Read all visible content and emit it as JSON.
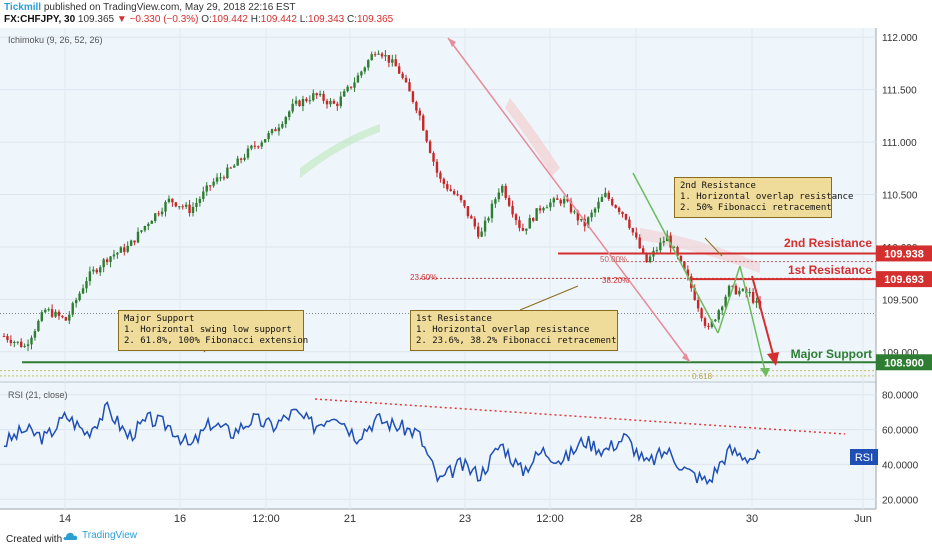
{
  "header": {
    "brand": "Tickmill",
    "published": "published on TradingView.com, May 29, 2018 22:16 EST",
    "symbol": "FX:CHFJPY, 30",
    "price": "109.365",
    "change_arrow": "▼",
    "change": "−0.330 (−0.3%)",
    "ohlc": {
      "o_label": "O:",
      "o": "109.442",
      "h_label": "H:",
      "h": "109.442",
      "l_label": "L:",
      "l": "109.343",
      "c_label": "C:",
      "c": "109.365"
    }
  },
  "footer": {
    "created_with": "Created with",
    "tv_name": "TradingView"
  },
  "colors": {
    "background": "#eef5fb",
    "candle_up": "#2e7d32",
    "candle_down": "#c62828",
    "resistance": "#d32f2f",
    "support": "#2e7d32",
    "rsi_line": "#1f4fb5",
    "callout_fill": "#f0dc9a"
  },
  "indicators": {
    "ichimoku_label": "Ichimoku (9, 26, 52, 26)",
    "rsi_label": "RSI (21, close)",
    "rsi_tag": "RSI"
  },
  "levels": {
    "second_resistance": {
      "label": "2nd Resistance",
      "price": "109.938",
      "value": 109.938
    },
    "first_resistance": {
      "label": "1st Resistance",
      "price": "109.693",
      "value": 109.693
    },
    "major_support": {
      "label": "Major Support",
      "price": "108.900",
      "value": 108.9
    }
  },
  "fib_labels": {
    "f500": "50.00%",
    "f236": "23.60%",
    "f382": "38.20%",
    "f618": "0.618"
  },
  "callouts": {
    "second_resistance": [
      "2nd Resistance",
      "1. Horizontal overlap resistance",
      "2. 50% Fibonacci retracement"
    ],
    "first_resistance": [
      "1st Resistance",
      "1. Horizontal overlap resistance",
      "2. 23.6%, 38.2% Fibonacci retracement"
    ],
    "major_support": [
      "Major Support",
      "1. Horizontal swing low support",
      "2. 61.8%, 100% Fibonacci extension"
    ]
  },
  "chart_data": [
    {
      "type": "candlestick",
      "title": "FX:CHFJPY, 30",
      "price_axis_ticks": [
        "112.000",
        "111.500",
        "111.000",
        "110.500",
        "110.000",
        "109.500",
        "109.000"
      ],
      "ylim": [
        108.75,
        112.05
      ],
      "time_axis_ticks": [
        "14",
        "16",
        "12:00",
        "21",
        "23",
        "12:00",
        "28",
        "30",
        "Jun"
      ],
      "close_path": [
        {
          "x": 0,
          "y": 109.15
        },
        {
          "x": 2,
          "y": 109.05
        },
        {
          "x": 4,
          "y": 109.4
        },
        {
          "x": 6,
          "y": 109.3
        },
        {
          "x": 8,
          "y": 109.7
        },
        {
          "x": 10,
          "y": 109.9
        },
        {
          "x": 12,
          "y": 110.0
        },
        {
          "x": 14,
          "y": 110.25
        },
        {
          "x": 16,
          "y": 110.45
        },
        {
          "x": 18,
          "y": 110.35
        },
        {
          "x": 20,
          "y": 110.6
        },
        {
          "x": 22,
          "y": 110.75
        },
        {
          "x": 24,
          "y": 110.95
        },
        {
          "x": 26,
          "y": 111.1
        },
        {
          "x": 28,
          "y": 111.35
        },
        {
          "x": 30,
          "y": 111.45
        },
        {
          "x": 32,
          "y": 111.35
        },
        {
          "x": 34,
          "y": 111.6
        },
        {
          "x": 36,
          "y": 111.9
        },
        {
          "x": 38,
          "y": 111.7
        },
        {
          "x": 40,
          "y": 111.3
        },
        {
          "x": 42,
          "y": 110.65
        },
        {
          "x": 44,
          "y": 110.45
        },
        {
          "x": 46,
          "y": 110.1
        },
        {
          "x": 48,
          "y": 110.6
        },
        {
          "x": 50,
          "y": 110.15
        },
        {
          "x": 52,
          "y": 110.4
        },
        {
          "x": 54,
          "y": 110.45
        },
        {
          "x": 56,
          "y": 110.2
        },
        {
          "x": 58,
          "y": 110.5
        },
        {
          "x": 60,
          "y": 110.3
        },
        {
          "x": 62,
          "y": 109.85
        },
        {
          "x": 64,
          "y": 110.1
        },
        {
          "x": 66,
          "y": 109.7
        },
        {
          "x": 68,
          "y": 109.2
        },
        {
          "x": 70,
          "y": 109.6
        },
        {
          "x": 72,
          "y": 109.55
        },
        {
          "x": 73,
          "y": 109.4
        }
      ],
      "levels": [
        {
          "name": "2nd Resistance",
          "value": 109.938
        },
        {
          "name": "1st Resistance",
          "value": 109.693
        },
        {
          "name": "Major Support",
          "value": 108.9
        }
      ]
    },
    {
      "type": "line",
      "title": "RSI (21, close)",
      "axis_ticks": [
        "80.0000",
        "60.0000",
        "40.0000",
        "20.0000"
      ],
      "ylim": [
        15,
        85
      ],
      "series": [
        {
          "name": "RSI",
          "values": [
            {
              "x": 0,
              "y": 52
            },
            {
              "x": 2,
              "y": 60
            },
            {
              "x": 4,
              "y": 55
            },
            {
              "x": 6,
              "y": 68
            },
            {
              "x": 8,
              "y": 58
            },
            {
              "x": 10,
              "y": 72
            },
            {
              "x": 12,
              "y": 56
            },
            {
              "x": 14,
              "y": 66
            },
            {
              "x": 16,
              "y": 62
            },
            {
              "x": 18,
              "y": 50
            },
            {
              "x": 20,
              "y": 64
            },
            {
              "x": 22,
              "y": 58
            },
            {
              "x": 24,
              "y": 66
            },
            {
              "x": 26,
              "y": 62
            },
            {
              "x": 28,
              "y": 70
            },
            {
              "x": 30,
              "y": 62
            },
            {
              "x": 32,
              "y": 70
            },
            {
              "x": 34,
              "y": 56
            },
            {
              "x": 36,
              "y": 66
            },
            {
              "x": 38,
              "y": 62
            },
            {
              "x": 40,
              "y": 58
            },
            {
              "x": 42,
              "y": 30
            },
            {
              "x": 44,
              "y": 40
            },
            {
              "x": 46,
              "y": 34
            },
            {
              "x": 48,
              "y": 52
            },
            {
              "x": 50,
              "y": 36
            },
            {
              "x": 52,
              "y": 48
            },
            {
              "x": 54,
              "y": 42
            },
            {
              "x": 56,
              "y": 54
            },
            {
              "x": 58,
              "y": 48
            },
            {
              "x": 60,
              "y": 56
            },
            {
              "x": 62,
              "y": 40
            },
            {
              "x": 64,
              "y": 48
            },
            {
              "x": 66,
              "y": 36
            },
            {
              "x": 68,
              "y": 30
            },
            {
              "x": 70,
              "y": 48
            },
            {
              "x": 72,
              "y": 44
            },
            {
              "x": 73,
              "y": 45
            }
          ]
        }
      ]
    }
  ]
}
